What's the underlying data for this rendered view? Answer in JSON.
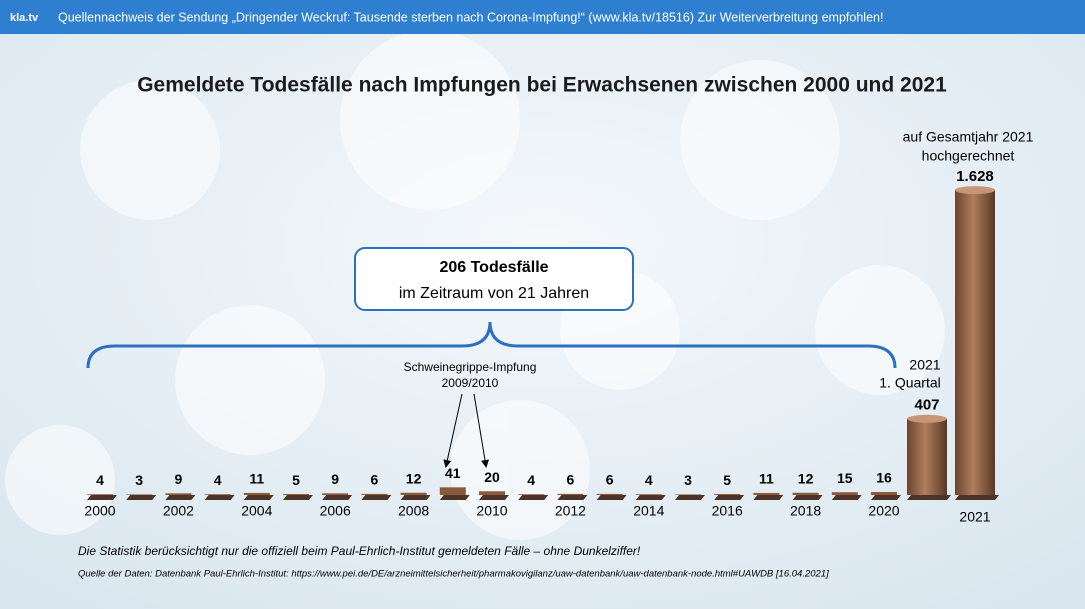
{
  "banner": {
    "logo": "kla.tv",
    "text": "Quellennachweis der Sendung „Dringender Weckruf: Tausende sterben nach Corona-Impfung!“ (www.kla.tv/18516)  Zur Weiterverbreitung empfohlen!"
  },
  "chart_data": {
    "type": "bar",
    "title": "Gemeldete Todesfälle nach Impfungen bei Erwachsenen zwischen 2000 und 2021",
    "categories": [
      "2000",
      null,
      "2002",
      null,
      "2004",
      null,
      "2006",
      null,
      "2008",
      null,
      "2010",
      null,
      "2012",
      null,
      "2014",
      null,
      "2016",
      null,
      "2018",
      null,
      "2020",
      null,
      "2021"
    ],
    "values": [
      4,
      3,
      9,
      4,
      11,
      5,
      9,
      6,
      12,
      41,
      20,
      4,
      6,
      6,
      4,
      3,
      5,
      11,
      12,
      15,
      16,
      407,
      1628
    ],
    "value_labels": [
      "4",
      "3",
      "9",
      "4",
      "11",
      "5",
      "9",
      "6",
      "12",
      "41",
      "20",
      "4",
      "6",
      "6",
      "4",
      "3",
      "5",
      "11",
      "12",
      "15",
      "16",
      "407",
      "1.628"
    ],
    "color": "#8a5a3c",
    "annotations": {
      "projection": [
        "auf Gesamtjahr 2021",
        "hochgerechnet"
      ],
      "total_box": [
        "206 Todesfälle",
        "im Zeitraum von 21 Jahren"
      ],
      "swine_flu": [
        "Schweinegrippe-Impfung",
        "2009/2010"
      ],
      "quarter": [
        "2021",
        "1. Quartal"
      ]
    },
    "footnote": "Die Statistik berücksichtigt nur die offiziell beim Paul-Ehrlich-Institut gemeldeten Fälle – ohne Dunkelziffer!",
    "source": "Quelle der Daten: Datenbank Paul-Ehrlich-Institut: https://www.pei.de/DE/arzneimittelsicherheit/pharmakovigilanz/uaw-datenbank/uaw-datenbank-node.html#UAWDB [16.04.2021]"
  }
}
